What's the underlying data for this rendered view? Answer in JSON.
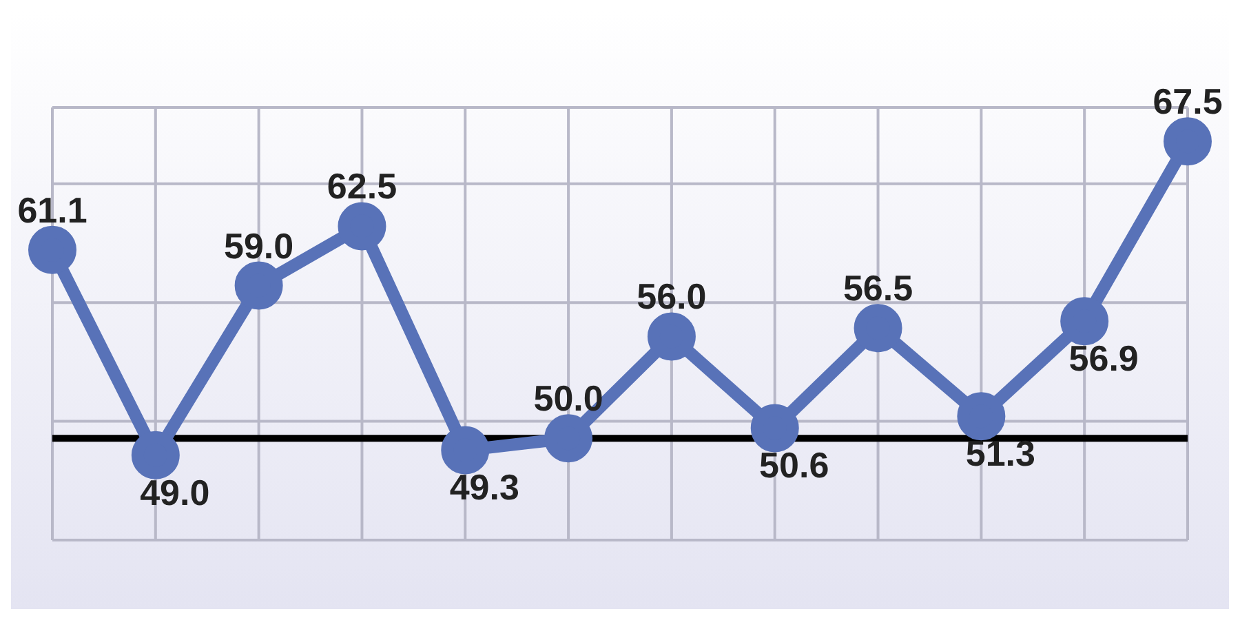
{
  "chart_data": {
    "type": "line",
    "categories": [
      null,
      null,
      null,
      null,
      null,
      null,
      null,
      null,
      null,
      null,
      null,
      null
    ],
    "series": [
      {
        "color": "#5872b8",
        "values": [
          61.1,
          49.0,
          59.0,
          62.5,
          49.3,
          50.0,
          56.0,
          50.6,
          56.5,
          51.3,
          56.9,
          67.5
        ],
        "value_labels": [
          "61.1",
          "49.0",
          "59.0",
          "62.5",
          "49.3",
          "50.0",
          "56.0",
          "50.6",
          "56.5",
          "51.3",
          "56.9",
          "67.5"
        ]
      }
    ],
    "marker": "circle",
    "line_style": "solid",
    "grid": true,
    "ref_lines": [
      {
        "axis": "y",
        "value": 50,
        "color": "#000000",
        "line_style": "solid"
      }
    ]
  }
}
